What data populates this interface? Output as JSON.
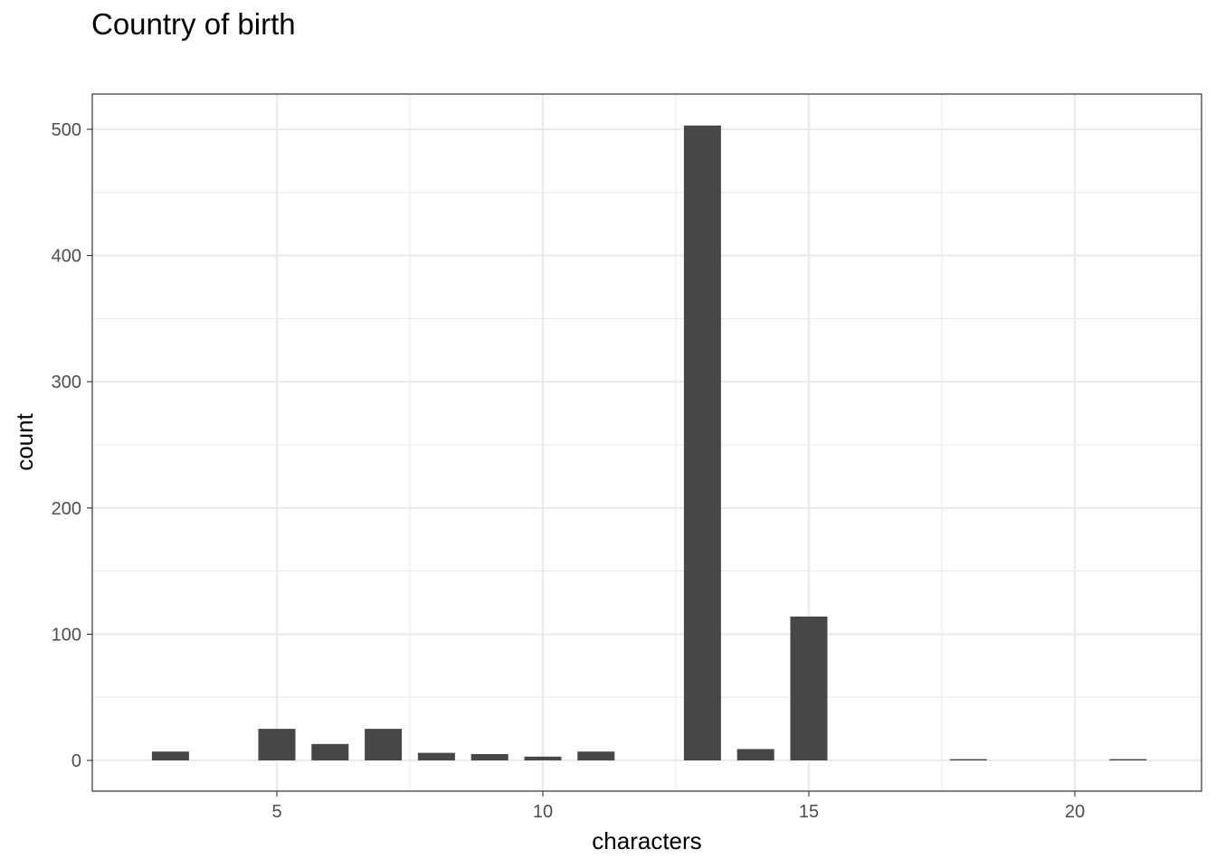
{
  "chart_data": {
    "type": "bar",
    "title": "Country of birth",
    "xlabel": "characters",
    "ylabel": "count",
    "x": [
      3,
      5,
      6,
      7,
      8,
      9,
      10,
      11,
      13,
      14,
      15,
      18,
      21
    ],
    "values": [
      7,
      25,
      13,
      25,
      6,
      5,
      3,
      7,
      503,
      9,
      114,
      1,
      1
    ],
    "xlim_ticks": [
      5,
      10,
      15,
      20
    ],
    "yticks": [
      0,
      100,
      200,
      300,
      400,
      500
    ],
    "ylim": [
      0,
      503
    ],
    "bar_color": "#474747",
    "grid": true,
    "panel_border": "#333333",
    "gridline_color": "#ebebeb"
  }
}
